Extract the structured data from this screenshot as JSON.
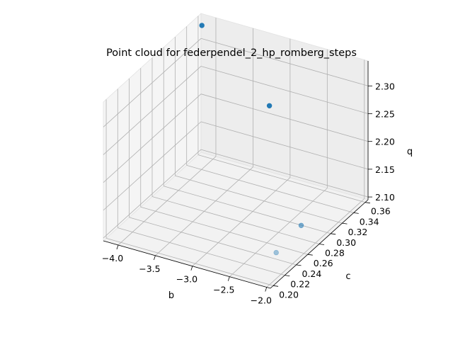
{
  "chart_data": {
    "type": "scatter",
    "projection": "3d",
    "title": "Point cloud for federpendel_2_hp_romberg_steps",
    "xlabel": "b",
    "ylabel": "c",
    "zlabel": "q",
    "xlim": [
      -4.2,
      -1.95
    ],
    "ylim": [
      0.195,
      0.365
    ],
    "zlim": [
      2.095,
      2.345
    ],
    "x_ticks": [
      -4.0,
      -3.5,
      -3.0,
      -2.5,
      -2.0
    ],
    "x_tick_labels": [
      "−4.0",
      "−3.5",
      "−3.0",
      "−2.5",
      "−2.0"
    ],
    "y_ticks": [
      0.2,
      0.22,
      0.24,
      0.26,
      0.28,
      0.3,
      0.32,
      0.34,
      0.36
    ],
    "y_tick_labels": [
      "0.20",
      "0.22",
      "0.24",
      "0.26",
      "0.28",
      "0.30",
      "0.32",
      "0.34",
      "0.36"
    ],
    "z_ticks": [
      2.1,
      2.15,
      2.2,
      2.25,
      2.3
    ],
    "z_tick_labels": [
      "2.10",
      "2.15",
      "2.20",
      "2.25",
      "2.30"
    ],
    "grid": true,
    "marker_color": "#1f77b4",
    "points": [
      {
        "x": -4.15,
        "y": 0.36,
        "z": 2.33
      },
      {
        "x": -3.24,
        "y": 0.36,
        "z": 2.22
      },
      {
        "x": -2.0,
        "y": 0.255,
        "z": 2.15
      },
      {
        "x": -1.98,
        "y": 0.209,
        "z": 2.145
      }
    ]
  }
}
